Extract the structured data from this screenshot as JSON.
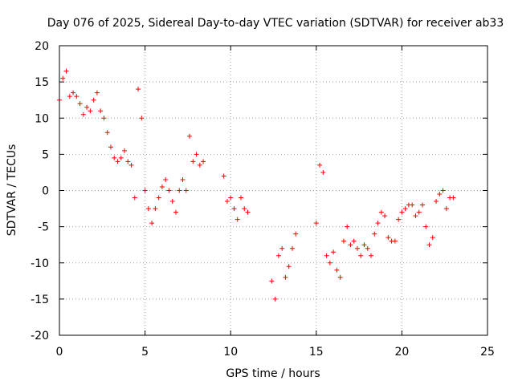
{
  "chart_data": {
    "type": "scatter",
    "title": "Day 076 of 2025, Sidereal Day-to-day VTEC variation (SDTVAR) for receiver ab33",
    "xlabel": "GPS time / hours",
    "ylabel": "SDTVAR / TECUs",
    "xlim": [
      0,
      25
    ],
    "ylim": [
      -20,
      20
    ],
    "x_ticks": [
      "0",
      "5",
      "10",
      "15",
      "20",
      "25"
    ],
    "y_ticks": [
      "-20",
      "-15",
      "-10",
      "-5",
      "0",
      "5",
      "10",
      "15",
      "20"
    ],
    "grid": true,
    "legend": "none",
    "marker": "plus",
    "color": "#ff0000",
    "series": [
      {
        "name": "SDTVAR",
        "x": [
          0.0,
          0.2,
          0.4,
          0.6,
          0.8,
          1.0,
          1.2,
          1.4,
          1.6,
          1.8,
          2.0,
          2.2,
          2.4,
          2.6,
          2.8,
          3.0,
          3.2,
          3.4,
          3.6,
          3.8,
          4.0,
          4.2,
          4.4,
          4.6,
          4.8,
          5.0,
          5.2,
          5.4,
          5.6,
          5.8,
          6.0,
          6.2,
          6.4,
          6.6,
          6.8,
          7.0,
          7.2,
          7.4,
          7.6,
          7.8,
          8.0,
          8.2,
          8.4,
          9.6,
          9.8,
          10.0,
          10.2,
          10.4,
          10.6,
          10.8,
          11.0,
          12.4,
          12.6,
          12.8,
          13.0,
          13.2,
          13.4,
          13.6,
          13.8,
          15.0,
          15.2,
          15.4,
          15.6,
          15.8,
          16.0,
          16.2,
          16.4,
          16.6,
          16.8,
          17.0,
          17.2,
          17.4,
          17.6,
          17.8,
          18.0,
          18.2,
          18.4,
          18.6,
          18.8,
          19.0,
          19.2,
          19.4,
          19.6,
          19.8,
          20.0,
          20.2,
          20.4,
          20.6,
          20.8,
          21.0,
          21.2,
          21.4,
          21.6,
          21.8,
          22.0,
          22.2,
          22.4,
          22.6,
          22.8,
          23.0
        ],
        "y": [
          12.5,
          15.5,
          16.5,
          13.0,
          13.5,
          13.0,
          12.0,
          10.5,
          11.5,
          11.0,
          12.5,
          13.5,
          11.0,
          10.0,
          8.0,
          6.0,
          4.5,
          4.0,
          4.5,
          5.5,
          4.0,
          3.5,
          -1.0,
          14.0,
          10.0,
          0.0,
          -2.5,
          -4.5,
          -2.5,
          -1.0,
          0.5,
          1.5,
          0.0,
          -1.5,
          -3.0,
          0.0,
          1.5,
          0.0,
          7.5,
          4.0,
          5.0,
          3.5,
          4.0,
          2.0,
          -1.5,
          -1.0,
          -2.5,
          -4.0,
          -1.0,
          -2.5,
          -3.0,
          -12.5,
          -15.0,
          -9.0,
          -8.0,
          -12.0,
          -10.5,
          -8.0,
          -6.0,
          -4.5,
          3.5,
          2.5,
          -9.0,
          -10.0,
          -8.5,
          -11.0,
          -12.0,
          -7.0,
          -5.0,
          -7.5,
          -7.0,
          -8.0,
          -9.0,
          -7.5,
          -8.0,
          -9.0,
          -6.0,
          -4.5,
          -3.0,
          -3.5,
          -6.5,
          -7.0,
          -7.0,
          -4.0,
          -3.0,
          -2.5,
          -2.0,
          -2.0,
          -3.5,
          -3.0,
          -2.0,
          -5.0,
          -7.5,
          -6.5,
          -1.5,
          -0.5,
          0.0,
          -2.5,
          -1.0,
          -1.0
        ]
      }
    ]
  }
}
